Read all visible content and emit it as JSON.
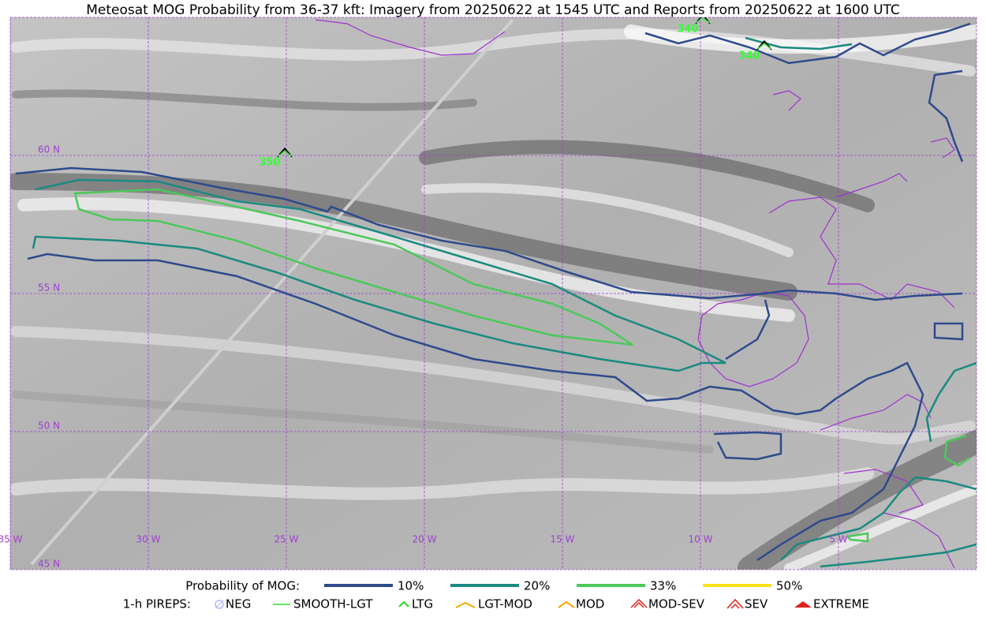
{
  "title": "Meteosat MOG Probability from 36-37 kft: Imagery from 20250622 at 1545 UTC and Reports from 20250622 at 1600 UTC",
  "map": {
    "lat_labels": [
      "60 N",
      "55 N",
      "50 N",
      "45 N"
    ],
    "lon_labels": [
      "35 W",
      "30 W",
      "25 W",
      "20 W",
      "15 W",
      "10 W",
      "5 W"
    ],
    "pireps": [
      {
        "label": "350"
      },
      {
        "label": "340"
      },
      {
        "label": "340"
      }
    ]
  },
  "legend": {
    "probability": {
      "title": "Probability of MOG:",
      "items": [
        "10%",
        "20%",
        "33%",
        "50%"
      ]
    },
    "pireps": {
      "title": "1-h PIREPS:",
      "items": [
        "NEG",
        "SMOOTH-LGT",
        "LTG",
        "LGT-MOD",
        "MOD",
        "MOD-SEV",
        "SEV",
        "EXTREME"
      ]
    }
  }
}
